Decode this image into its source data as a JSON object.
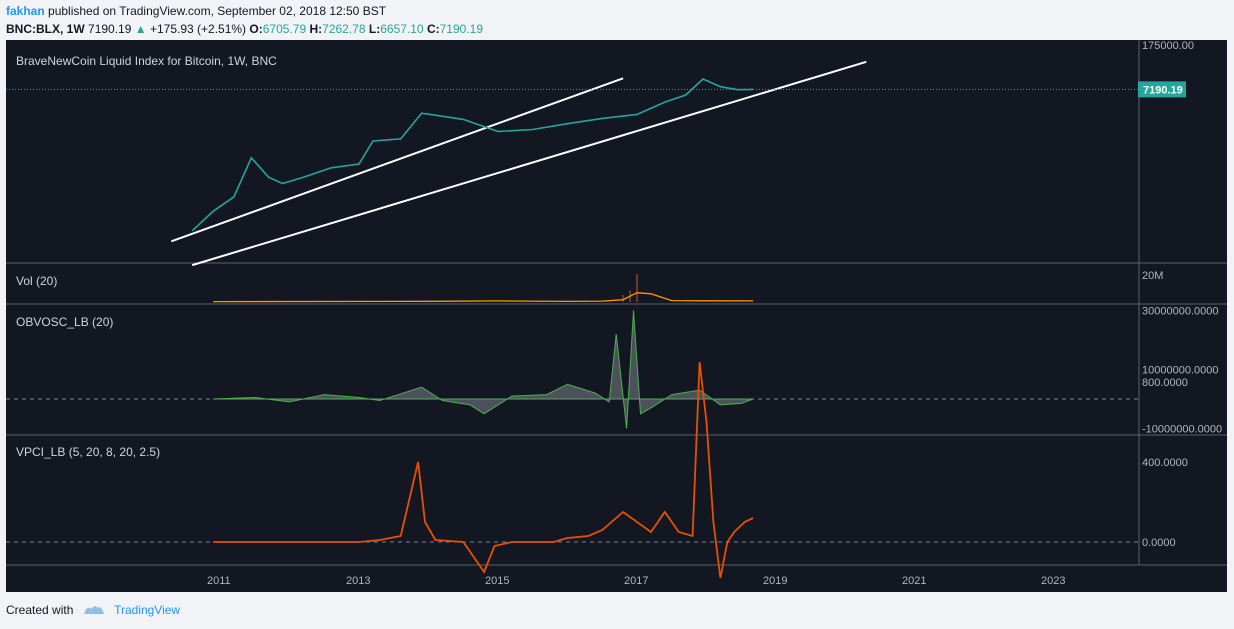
{
  "header": {
    "author": "fakhan",
    "published_text": "published on TradingView.com, September 02, 2018 12:50 BST",
    "symbol": "BNC:BLX, 1W",
    "price": "7190.19",
    "change": "+175.93 (+2.51%)",
    "open_label": "O:",
    "open": "6705.79",
    "high_label": "H:",
    "high": "7262.78",
    "low_label": "L:",
    "low": "6657.10",
    "close_label": "C:",
    "close": "7190.19"
  },
  "footer": {
    "created_with": "Created with",
    "brand": "TradingView"
  },
  "colors": {
    "bg": "#131722",
    "up": "#26a69a",
    "down": "#ef5350",
    "vol_ma": "#ff9800",
    "vpci": "#e65100",
    "grid": "#758696",
    "trend": "#ffffff"
  },
  "chart_data": [
    {
      "type": "line",
      "title": "BraveNewCoin Liquid Index for Bitcoin, 1W, BNC",
      "scale": "log",
      "x_ticks": [
        "2011",
        "2013",
        "2015",
        "2017",
        "2019",
        "2021",
        "2023"
      ],
      "y_ticks": [
        "175000.00"
      ],
      "last_value_label": "7190.19",
      "series": [
        {
          "x": [
            2010.6,
            2010.9,
            2011.2,
            2011.45,
            2011.7,
            2011.9,
            2012.2,
            2012.6,
            2013.0,
            2013.2,
            2013.4,
            2013.6,
            2013.9,
            2014.1,
            2014.5,
            2015.0,
            2015.5,
            2016.0,
            2016.5,
            2017.0,
            2017.4,
            2017.7,
            2017.95,
            2018.2,
            2018.45,
            2018.67
          ],
          "y": [
            0.06,
            0.3,
            1.0,
            25,
            5,
            3,
            5,
            11,
            15,
            100,
            110,
            120,
            1000,
            850,
            600,
            220,
            260,
            420,
            650,
            900,
            2500,
            4500,
            17000,
            9000,
            7000,
            7190.19
          ]
        }
      ],
      "trendlines": [
        {
          "from": [
            2010.3,
            0.025
          ],
          "to": [
            2016.8,
            18000
          ]
        },
        {
          "from": [
            2010.6,
            0.0035
          ],
          "to": [
            2020.3,
            70000
          ]
        }
      ]
    },
    {
      "type": "bar",
      "title": "Vol (20)",
      "y_ticks": [
        "20M"
      ],
      "series": [
        {
          "name": "volume",
          "x": [
            2016.8,
            2016.9,
            2017.0
          ],
          "y": [
            6,
            10,
            24
          ]
        },
        {
          "x": [
            2010.9,
            2014.0,
            2015.0,
            2016.0,
            2016.5,
            2016.8,
            2017.0,
            2017.2,
            2017.5,
            2018.0,
            2018.67
          ],
          "y": [
            0.3,
            0.6,
            0.9,
            0.5,
            0.8,
            2,
            8,
            7,
            1.2,
            1.0,
            0.9
          ]
        }
      ]
    },
    {
      "type": "area",
      "title": "OBVOSC_LB (20)",
      "y_ticks": [
        "30000000.0000",
        "10000000.0000",
        "-10000000.0000"
      ],
      "series": [
        {
          "x": [
            2010.9,
            2011.5,
            2012.0,
            2012.5,
            2013.0,
            2013.3,
            2013.9,
            2014.2,
            2014.6,
            2014.8,
            2015.2,
            2015.7,
            2016.0,
            2016.4,
            2016.6,
            2016.7,
            2016.85,
            2016.95,
            2017.05,
            2017.2,
            2017.5,
            2017.9,
            2018.2,
            2018.5,
            2018.67
          ],
          "y": [
            0,
            0.5,
            -1,
            1.5,
            0.5,
            -0.5,
            4,
            -0.5,
            -2,
            -5,
            1,
            1.5,
            5,
            2,
            -1,
            22,
            -10,
            30,
            -5,
            -3,
            1.5,
            3,
            -2,
            -1.5,
            0
          ]
        }
      ]
    },
    {
      "type": "line",
      "title": "VPCI_LB (5, 20, 8, 20, 2.5)",
      "y_ticks": [
        "800.0000",
        "400.0000",
        "0.0000"
      ],
      "series": [
        {
          "x": [
            2010.9,
            2011.3,
            2012.0,
            2012.5,
            2013.0,
            2013.3,
            2013.6,
            2013.85,
            2013.95,
            2014.1,
            2014.5,
            2014.8,
            2014.95,
            2015.2,
            2015.5,
            2015.8,
            2016.0,
            2016.3,
            2016.5,
            2016.8,
            2017.0,
            2017.2,
            2017.4,
            2017.6,
            2017.8,
            2017.9,
            2018.0,
            2018.1,
            2018.2,
            2018.3,
            2018.4,
            2018.55,
            2018.67
          ],
          "y": [
            0,
            0,
            0,
            0,
            0,
            10,
            30,
            400,
            100,
            10,
            0,
            -150,
            -20,
            0,
            0,
            0,
            20,
            30,
            60,
            150,
            100,
            50,
            150,
            50,
            30,
            900,
            600,
            100,
            -180,
            0,
            50,
            100,
            120
          ]
        }
      ]
    }
  ]
}
